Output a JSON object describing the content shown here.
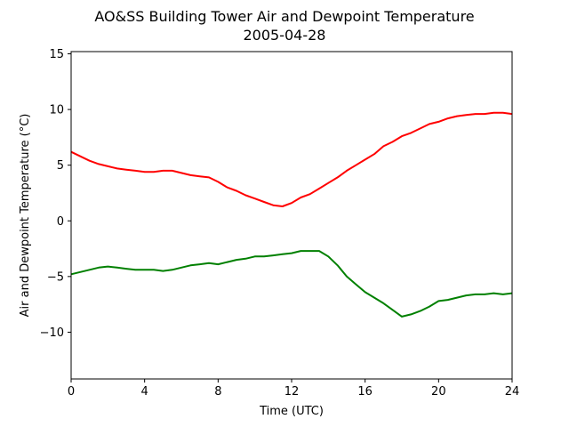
{
  "chart_data": {
    "type": "line",
    "title": "AO&SS Building Tower Air and Dewpoint Temperature",
    "subtitle": "2005-04-28",
    "xlabel": "Time (UTC)",
    "ylabel": "Air and Dewpoint Temperature (°C)",
    "xlim": [
      0,
      24
    ],
    "ylim": [
      -14.2,
      15.2
    ],
    "xticks": [
      0,
      4,
      8,
      12,
      16,
      20,
      24
    ],
    "yticks": [
      -10,
      -5,
      0,
      5,
      10,
      15
    ],
    "grid": false,
    "series": [
      {
        "color": "#ff0000",
        "x": [
          0,
          0.5,
          1,
          1.5,
          2,
          2.5,
          3,
          3.5,
          4,
          4.5,
          5,
          5.5,
          6,
          6.5,
          7,
          7.5,
          8,
          8.5,
          9,
          9.5,
          10,
          10.5,
          11,
          11.5,
          12,
          12.5,
          13,
          13.5,
          14,
          14.5,
          15,
          15.5,
          16,
          16.5,
          17,
          17.5,
          18,
          18.5,
          19,
          19.5,
          20,
          20.5,
          21,
          21.5,
          22,
          22.5,
          23,
          23.5,
          24
        ],
        "y": [
          6.2,
          5.8,
          5.4,
          5.1,
          4.9,
          4.7,
          4.6,
          4.5,
          4.4,
          4.4,
          4.5,
          4.5,
          4.3,
          4.1,
          4.0,
          3.9,
          3.5,
          3.0,
          2.7,
          2.3,
          2.0,
          1.7,
          1.4,
          1.3,
          1.6,
          2.1,
          2.4,
          2.9,
          3.4,
          3.9,
          4.5,
          5.0,
          5.5,
          6.0,
          6.7,
          7.1,
          7.6,
          7.9,
          8.3,
          8.7,
          8.9,
          9.2,
          9.4,
          9.5,
          9.6,
          9.6,
          9.7,
          9.7,
          9.6
        ]
      },
      {
        "color": "#008000",
        "x": [
          0,
          0.5,
          1,
          1.5,
          2,
          2.5,
          3,
          3.5,
          4,
          4.5,
          5,
          5.5,
          6,
          6.5,
          7,
          7.5,
          8,
          8.5,
          9,
          9.5,
          10,
          10.5,
          11,
          11.5,
          12,
          12.5,
          13,
          13.5,
          14,
          14.5,
          15,
          15.5,
          16,
          16.5,
          17,
          17.5,
          18,
          18.5,
          19,
          19.5,
          20,
          20.5,
          21,
          21.5,
          22,
          22.5,
          23,
          23.5,
          24
        ],
        "y": [
          -4.8,
          -4.6,
          -4.4,
          -4.2,
          -4.1,
          -4.2,
          -4.3,
          -4.4,
          -4.4,
          -4.4,
          -4.5,
          -4.4,
          -4.2,
          -4.0,
          -3.9,
          -3.8,
          -3.9,
          -3.7,
          -3.5,
          -3.4,
          -3.2,
          -3.2,
          -3.1,
          -3.0,
          -2.9,
          -2.7,
          -2.7,
          -2.7,
          -3.2,
          -4.0,
          -5.0,
          -5.7,
          -6.4,
          -6.9,
          -7.4,
          -8.0,
          -8.6,
          -8.4,
          -8.1,
          -7.7,
          -7.2,
          -7.1,
          -6.9,
          -6.7,
          -6.6,
          -6.6,
          -6.5,
          -6.6,
          -6.5
        ]
      }
    ]
  }
}
